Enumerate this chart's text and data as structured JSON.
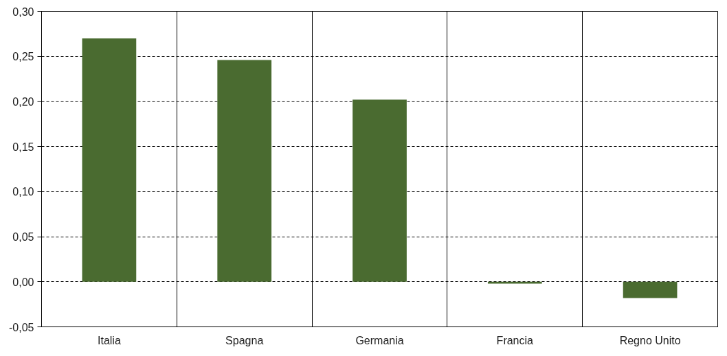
{
  "chart_data": {
    "type": "bar",
    "categories": [
      "Italia",
      "Spagna",
      "Germania",
      "Francia",
      "Regno Unito"
    ],
    "series": [
      {
        "color": "#4a6b30",
        "values": [
          0.27,
          0.246,
          0.202,
          -0.002,
          -0.018
        ]
      }
    ],
    "ylim": [
      -0.05,
      0.3
    ],
    "yticks": [
      {
        "value": -0.05,
        "label": "-0,05"
      },
      {
        "value": 0.0,
        "label": "0,00"
      },
      {
        "value": 0.05,
        "label": "0,05"
      },
      {
        "value": 0.1,
        "label": "0,10"
      },
      {
        "value": 0.15,
        "label": "0,15"
      },
      {
        "value": 0.2,
        "label": "0,20"
      },
      {
        "value": 0.25,
        "label": "0,25"
      },
      {
        "value": 0.3,
        "label": "0,30"
      }
    ],
    "grid": true
  }
}
